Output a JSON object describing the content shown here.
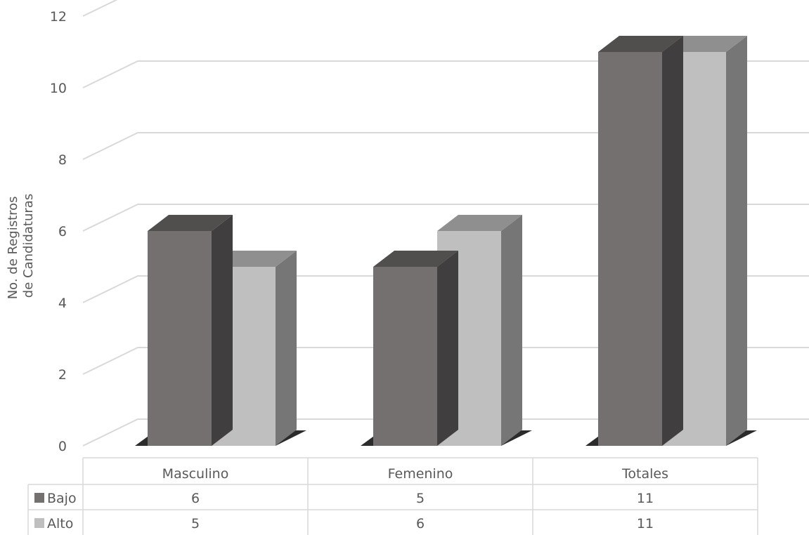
{
  "chart_data": {
    "type": "bar",
    "style": "3d-clustered-column-with-data-table",
    "categories": [
      "Masculino",
      "Femenino",
      "Totales"
    ],
    "series": [
      {
        "name": "Bajo",
        "values": [
          6,
          5,
          11
        ],
        "color": "#747070"
      },
      {
        "name": "Alto",
        "values": [
          5,
          6,
          11
        ],
        "color": "#bfbfbf"
      }
    ],
    "ylabel": [
      "No. de Registros",
      "de Candidaturas"
    ],
    "ylim": [
      0,
      12
    ],
    "yticks": [
      0,
      2,
      4,
      6,
      8,
      10,
      12
    ],
    "grid": true,
    "legend": "data-table"
  }
}
